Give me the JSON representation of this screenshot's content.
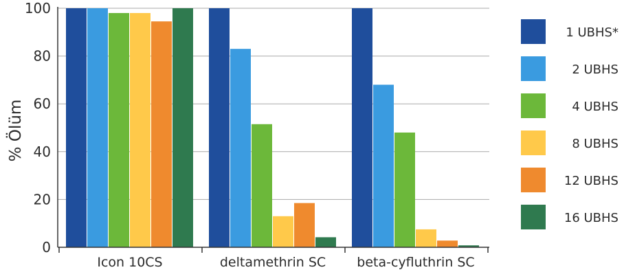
{
  "chart_data": {
    "type": "bar",
    "title": "",
    "xlabel": "",
    "ylabel": "% Ölüm",
    "ylim": [
      0,
      100
    ],
    "yticks": [
      "0",
      "20",
      "40",
      "60",
      "80",
      "100"
    ],
    "grid": true,
    "legend_position": "right",
    "categories": [
      "Icon 10CS",
      "deltamethrin SC",
      "beta-cyfluthrin SC"
    ],
    "series": [
      {
        "name": "1 UBHS*",
        "color": "#1f4e9c",
        "values": [
          100,
          100,
          100
        ]
      },
      {
        "name": "2 UBHS",
        "color": "#3a9be0",
        "values": [
          100,
          83,
          68
        ]
      },
      {
        "name": "4 UBHS",
        "color": "#6cb83a",
        "values": [
          98,
          51.5,
          48
        ]
      },
      {
        "name": "8 UBHS",
        "color": "#ffc94a",
        "values": [
          98,
          13,
          7.5
        ]
      },
      {
        "name": "12 UBHS",
        "color": "#ef8a2e",
        "values": [
          94.5,
          18.5,
          2.8
        ]
      },
      {
        "name": "16 UBHS",
        "color": "#2f7a4f",
        "values": [
          100,
          4.2,
          0.8
        ]
      }
    ]
  }
}
